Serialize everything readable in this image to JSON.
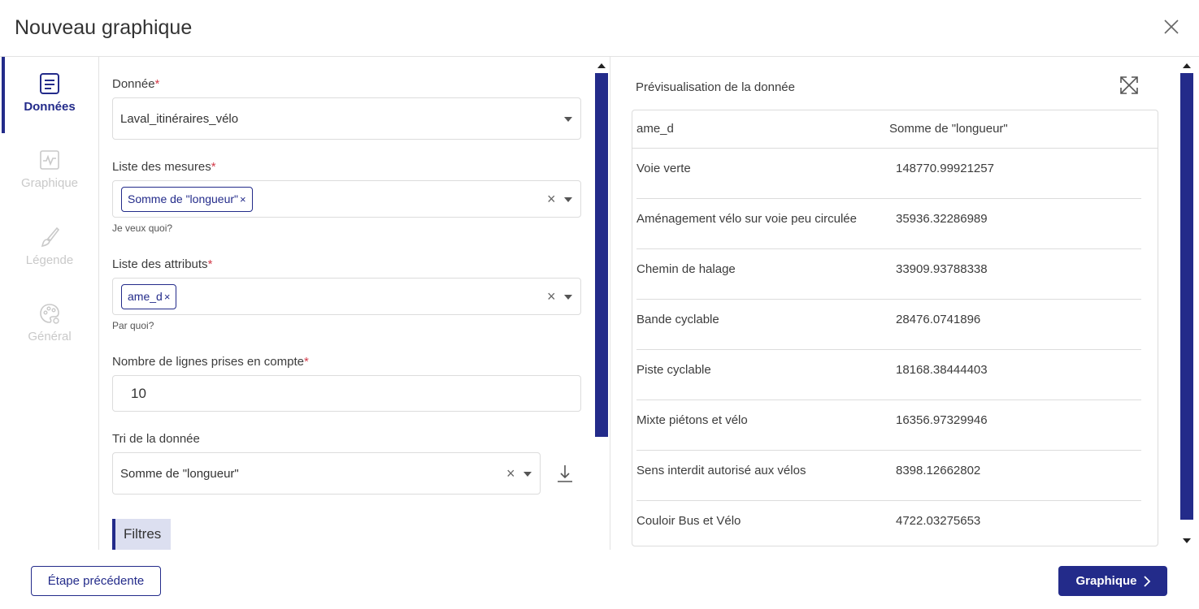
{
  "dialog": {
    "title": "Nouveau graphique"
  },
  "sidebar": {
    "steps": [
      {
        "label": "Données",
        "icon": "document-icon",
        "active": true
      },
      {
        "label": "Graphique",
        "icon": "chart-icon",
        "active": false
      },
      {
        "label": "Légende",
        "icon": "brush-icon",
        "active": false
      },
      {
        "label": "Général",
        "icon": "palette-icon",
        "active": false
      }
    ]
  },
  "form": {
    "data_label": "Donnée",
    "data_value": "Laval_itinéraires_vélo",
    "measures_label": "Liste des mesures",
    "measures_chip": "Somme de \"longueur\"",
    "measures_hint": "Je veux quoi?",
    "attributes_label": "Liste des attributs",
    "attributes_chip": "ame_d",
    "attributes_hint": "Par quoi?",
    "rows_label": "Nombre de lignes prises en compte",
    "rows_value": "10",
    "sort_label": "Tri de la donnée",
    "sort_value": "Somme de \"longueur\"",
    "filters_label": "Filtres",
    "required_mark": "*",
    "chip_remove": "×",
    "clear_mark": "×"
  },
  "preview": {
    "title": "Prévisualisation de la donnée",
    "columns": [
      "ame_d",
      "Somme de \"longueur\""
    ],
    "rows": [
      [
        "Voie verte",
        "148770.99921257"
      ],
      [
        "Aménagement vélo sur voie peu circulée",
        "35936.32286989"
      ],
      [
        "Chemin de halage",
        "33909.93788338"
      ],
      [
        "Bande cyclable",
        "28476.0741896"
      ],
      [
        "Piste cyclable",
        "18168.38444403"
      ],
      [
        "Mixte piétons et vélo",
        "16356.97329946"
      ],
      [
        "Sens interdit autorisé aux vélos",
        "8398.12662802"
      ],
      [
        "Couloir Bus et Vélo",
        "4722.03275653"
      ]
    ]
  },
  "footer": {
    "prev_label": "Étape précédente",
    "next_label": "Graphique"
  },
  "colors": {
    "primary": "#232b8a",
    "required": "#d23b4a",
    "disabled": "#c9c9c9",
    "filters_bg": "#dcdff0"
  }
}
